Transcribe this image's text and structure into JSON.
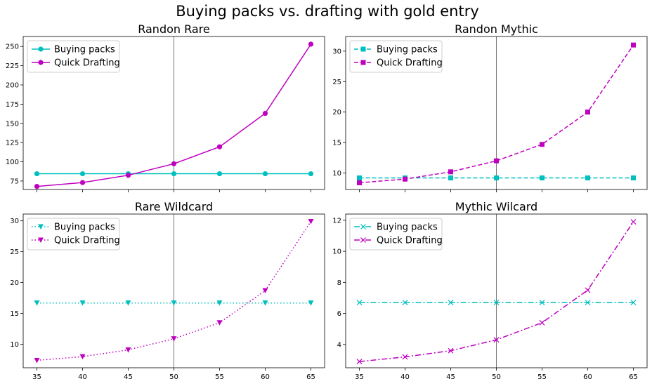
{
  "figure": {
    "title": "Buying packs vs. drafting with gold entry"
  },
  "colors": {
    "buy": "#00bfbf",
    "draft": "#bf00bf",
    "axis": "#000000",
    "vline": "#555555"
  },
  "chart_data": [
    {
      "type": "line",
      "title": "Randon Rare",
      "x": [
        35,
        40,
        45,
        50,
        55,
        60,
        65
      ],
      "ylim": [
        64,
        263
      ],
      "yticks": [
        75,
        100,
        125,
        150,
        175,
        200,
        225,
        250
      ],
      "vline": 50,
      "marker": "circle",
      "linestyle": "solid",
      "legend": "upper-left",
      "series": [
        {
          "name": "Buying packs",
          "values": [
            84.5,
            84.5,
            84.5,
            84.5,
            84.5,
            84.5,
            84.5
          ]
        },
        {
          "name": "Quick Drafting",
          "values": [
            68,
            73,
            82.5,
            97.5,
            119.5,
            163,
            253
          ]
        }
      ]
    },
    {
      "type": "line",
      "title": "Randon Mythic",
      "x": [
        35,
        40,
        45,
        50,
        55,
        60,
        65
      ],
      "ylim": [
        7.3,
        32.4
      ],
      "yticks": [
        10,
        15,
        20,
        25,
        30
      ],
      "vline": 50,
      "marker": "square",
      "linestyle": "dashed",
      "legend": "upper-left",
      "series": [
        {
          "name": "Buying packs",
          "values": [
            9.2,
            9.2,
            9.2,
            9.2,
            9.2,
            9.2,
            9.2
          ]
        },
        {
          "name": "Quick Drafting",
          "values": [
            8.4,
            9.0,
            10.2,
            12.0,
            14.7,
            20.0,
            31.0
          ]
        }
      ]
    },
    {
      "type": "line",
      "title": "Rare Wildcard",
      "x": [
        35,
        40,
        45,
        50,
        55,
        60,
        65
      ],
      "ylim": [
        6.2,
        31.1
      ],
      "yticks": [
        10,
        15,
        20,
        25,
        30
      ],
      "vline": 50,
      "marker": "triangle-down",
      "linestyle": "dotted",
      "legend": "upper-left",
      "series": [
        {
          "name": "Buying packs",
          "values": [
            16.7,
            16.7,
            16.7,
            16.7,
            16.7,
            16.7,
            16.7
          ]
        },
        {
          "name": "Quick Drafting",
          "values": [
            7.4,
            8.0,
            9.1,
            10.9,
            13.5,
            18.7,
            29.9
          ]
        }
      ]
    },
    {
      "type": "line",
      "title": "Mythic Wilcard",
      "x": [
        35,
        40,
        45,
        50,
        55,
        60,
        65
      ],
      "ylim": [
        2.5,
        12.4
      ],
      "yticks": [
        4,
        6,
        8,
        10,
        12
      ],
      "vline": 50,
      "marker": "x",
      "linestyle": "dashdot",
      "legend": "upper-left",
      "series": [
        {
          "name": "Buying packs",
          "values": [
            6.7,
            6.7,
            6.7,
            6.7,
            6.7,
            6.7,
            6.7
          ]
        },
        {
          "name": "Quick Drafting",
          "values": [
            2.9,
            3.2,
            3.6,
            4.3,
            5.4,
            7.5,
            11.9
          ]
        }
      ]
    }
  ]
}
